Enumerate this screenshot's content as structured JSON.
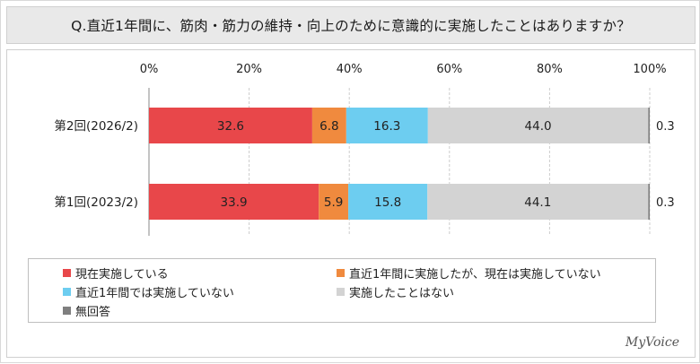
{
  "title": "Q.直近1年間に、筋肉・筋力の維持・向上のために意識的に実施したことはありますか？",
  "brand": "MyVoice",
  "chart_data": {
    "type": "bar",
    "orientation": "horizontal",
    "stacked": "percent",
    "x_ticks": [
      "0%",
      "20%",
      "40%",
      "60%",
      "80%",
      "100%"
    ],
    "xlim": [
      0,
      100
    ],
    "grid": true,
    "categories": [
      "第2回(2026/2)",
      "第1回(2023/2)"
    ],
    "series": [
      {
        "name": "現在実施している",
        "color": "#e8474a",
        "values": [
          32.6,
          33.9
        ]
      },
      {
        "name": "直近1年間に実施したが、現在は実施していない",
        "color": "#f08a3e",
        "values": [
          6.8,
          5.9
        ]
      },
      {
        "name": "直近1年間では実施していない",
        "color": "#6dcdf0",
        "values": [
          16.3,
          15.8
        ]
      },
      {
        "name": "実施したことはない",
        "color": "#d3d3d3",
        "values": [
          44.0,
          44.1
        ]
      },
      {
        "name": "無回答",
        "color": "#7f7f7f",
        "values": [
          0.3,
          0.3
        ]
      }
    ],
    "data_labels": [
      [
        "32.6",
        "6.8",
        "16.3",
        "44.0",
        "0.3"
      ],
      [
        "33.9",
        "5.9",
        "15.8",
        "44.1",
        "0.3"
      ]
    ],
    "legend_position": "bottom"
  }
}
